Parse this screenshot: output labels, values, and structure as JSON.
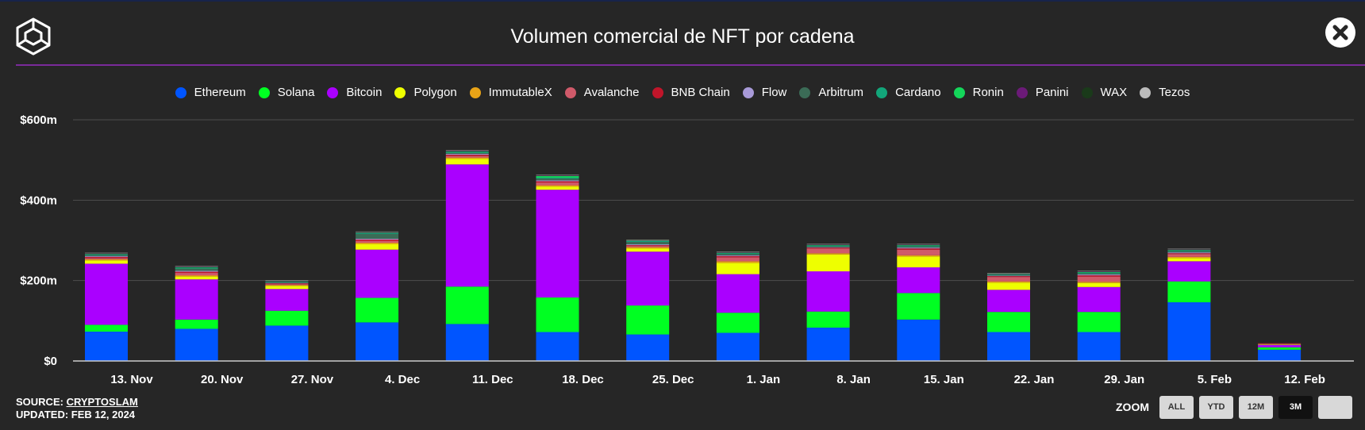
{
  "header": {
    "title": "Volumen comercial de NFT por cadena"
  },
  "footer": {
    "source_label": "SOURCE:",
    "source_name": "CRYPTOSLAM",
    "updated": "UPDATED: FEB 12, 2024",
    "zoom_label": "ZOOM",
    "zoom_options": [
      "ALL",
      "YTD",
      "12M",
      "3M",
      ""
    ],
    "zoom_active": "3M"
  },
  "chart_data": {
    "type": "bar",
    "stacked": true,
    "title": "Volumen comercial de NFT por cadena",
    "xlabel": "",
    "ylabel": "",
    "ylim": [
      0,
      600
    ],
    "yticks": [
      {
        "value": 0,
        "label": "$0"
      },
      {
        "value": 200,
        "label": "$200m"
      },
      {
        "value": 400,
        "label": "$400m"
      },
      {
        "value": 600,
        "label": "$600m"
      }
    ],
    "grid": true,
    "legend_position": "top",
    "categories": [
      "13. Nov",
      "20. Nov",
      "27. Nov",
      "4. Dec",
      "11. Dec",
      "18. Dec",
      "25. Dec",
      "1. Jan",
      "8. Jan",
      "15. Jan",
      "22. Jan",
      "29. Jan",
      "5. Feb",
      "12. Feb"
    ],
    "series": [
      {
        "name": "Ethereum",
        "color": "#0055ff",
        "values": [
          73,
          80,
          88,
          96,
          92,
          72,
          66,
          70,
          83,
          103,
          72,
          72,
          146,
          28
        ]
      },
      {
        "name": "Solana",
        "color": "#00ff22",
        "values": [
          17,
          23,
          37,
          61,
          93,
          86,
          72,
          50,
          40,
          66,
          50,
          50,
          52,
          6
        ]
      },
      {
        "name": "Bitcoin",
        "color": "#aa00ff",
        "values": [
          152,
          100,
          54,
          120,
          304,
          268,
          134,
          96,
          100,
          64,
          55,
          62,
          50,
          6
        ]
      },
      {
        "name": "Polygon",
        "color": "#eeff00",
        "values": [
          8,
          7,
          8,
          14,
          14,
          8,
          8,
          28,
          42,
          27,
          18,
          10,
          8,
          1
        ]
      },
      {
        "name": "ImmutableX",
        "color": "#e8a317",
        "values": [
          3,
          3,
          2,
          3,
          3,
          3,
          3,
          4,
          3,
          3,
          3,
          3,
          3,
          1
        ]
      },
      {
        "name": "Avalanche",
        "color": "#d05a6a",
        "values": [
          3,
          6,
          2,
          5,
          4,
          7,
          3,
          10,
          12,
          14,
          11,
          13,
          7,
          1
        ]
      },
      {
        "name": "BNB Chain",
        "color": "#c0152a",
        "values": [
          3,
          3,
          2,
          3,
          3,
          3,
          2,
          3,
          2,
          3,
          2,
          3,
          2,
          1
        ]
      },
      {
        "name": "Flow",
        "color": "#a89ad8",
        "values": [
          2,
          2,
          1,
          2,
          2,
          2,
          2,
          2,
          1,
          2,
          1,
          2,
          2,
          0
        ]
      },
      {
        "name": "Arbitrum",
        "color": "#3b6b56",
        "values": [
          2,
          6,
          2,
          12,
          3,
          5,
          6,
          3,
          2,
          3,
          2,
          3,
          3,
          0
        ]
      },
      {
        "name": "Cardano",
        "color": "#12a67a",
        "values": [
          2,
          2,
          1,
          2,
          2,
          2,
          2,
          2,
          2,
          2,
          1,
          2,
          2,
          0
        ]
      },
      {
        "name": "Ronin",
        "color": "#14d65a",
        "values": [
          1,
          1,
          1,
          1,
          1,
          4,
          1,
          1,
          1,
          1,
          1,
          1,
          1,
          0
        ]
      },
      {
        "name": "Panini",
        "color": "#6b1a78",
        "values": [
          1,
          1,
          1,
          1,
          1,
          1,
          1,
          1,
          1,
          1,
          1,
          1,
          1,
          0
        ]
      },
      {
        "name": "WAX",
        "color": "#1a3a1a",
        "values": [
          1,
          1,
          1,
          1,
          1,
          1,
          1,
          1,
          1,
          1,
          1,
          1,
          1,
          0
        ]
      },
      {
        "name": "Tezos",
        "color": "#bbbbbb",
        "values": [
          1,
          1,
          1,
          1,
          1,
          1,
          1,
          1,
          1,
          1,
          1,
          1,
          1,
          0
        ]
      }
    ]
  }
}
